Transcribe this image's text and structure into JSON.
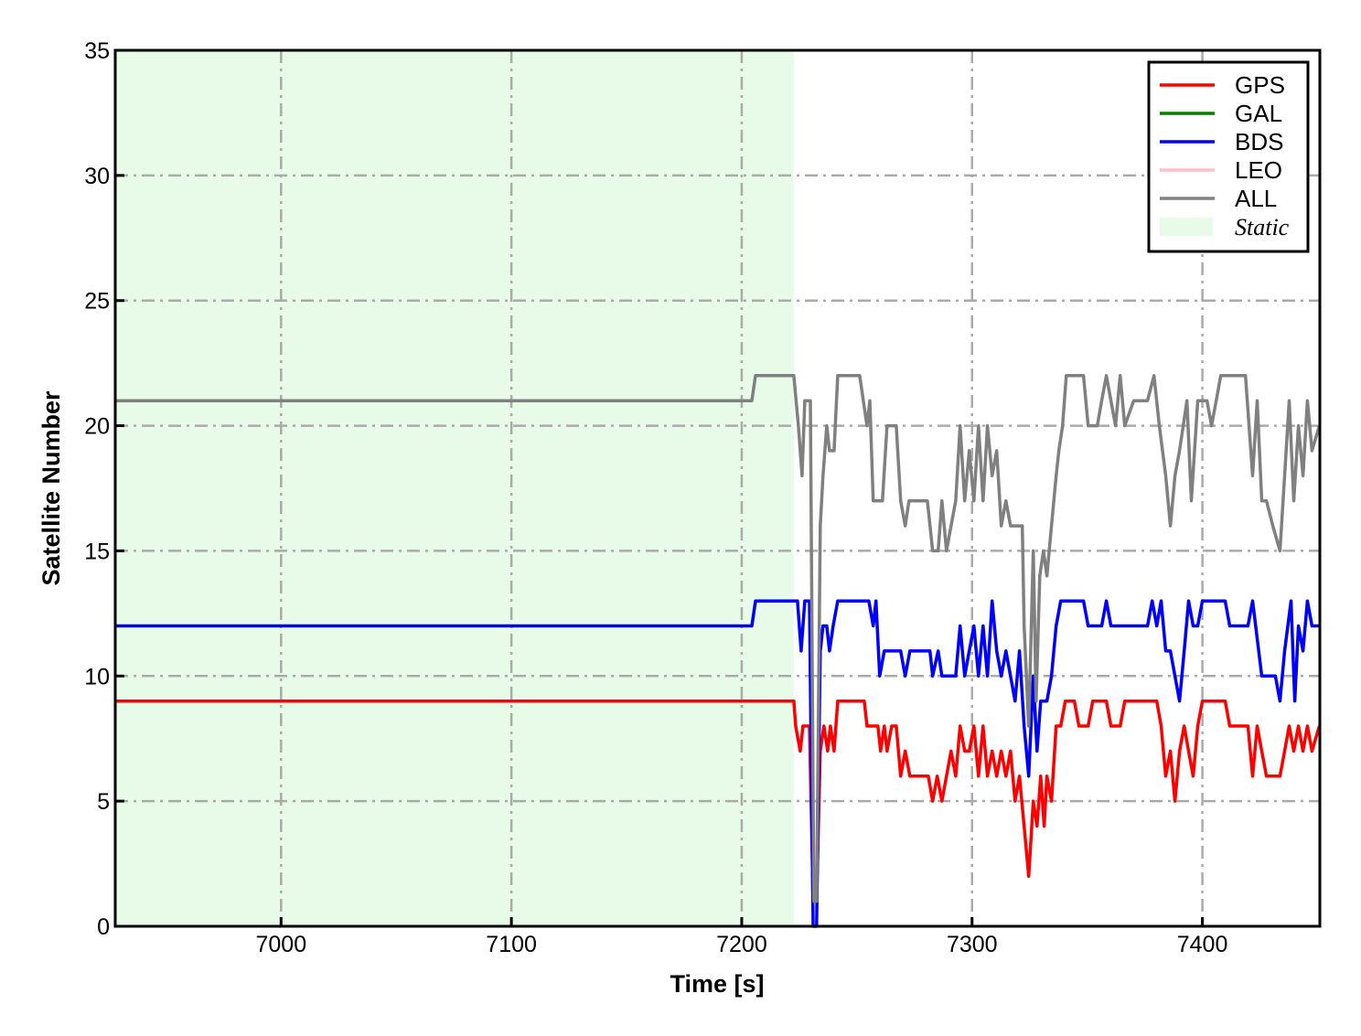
{
  "chart_data": {
    "type": "line",
    "title": "",
    "xlabel": "Time [s]",
    "ylabel": "Satellite Number",
    "xlim": [
      6928,
      7451
    ],
    "ylim": [
      0,
      35
    ],
    "xticks": [
      7000,
      7100,
      7200,
      7300,
      7400
    ],
    "yticks": [
      0,
      5,
      10,
      15,
      20,
      25,
      30,
      35
    ],
    "grid": true,
    "grid_style": "dash-dot",
    "legend_position": "top-right",
    "shaded_regions": [
      {
        "name": "Static",
        "x_start": 6928,
        "x_end": 7222.6,
        "color": "#e8fbe8"
      }
    ],
    "series": [
      {
        "name": "GPS",
        "color": "#ff0000",
        "points": [
          [
            6928,
            9
          ],
          [
            7222.6,
            9
          ],
          [
            7223.4,
            8
          ],
          [
            7225.4,
            7
          ],
          [
            7226.6,
            8
          ],
          [
            7229.4,
            8
          ],
          [
            7231,
            1
          ],
          [
            7232.5,
            1
          ],
          [
            7234.1,
            7
          ],
          [
            7235.7,
            8
          ],
          [
            7237.3,
            7
          ],
          [
            7238.5,
            8
          ],
          [
            7240.1,
            7
          ],
          [
            7241.7,
            9
          ],
          [
            7253.2,
            9
          ],
          [
            7254.4,
            8
          ],
          [
            7259.1,
            8
          ],
          [
            7260.3,
            7
          ],
          [
            7261.9,
            8
          ],
          [
            7263.1,
            7
          ],
          [
            7265.1,
            8
          ],
          [
            7267.1,
            8
          ],
          [
            7269,
            6
          ],
          [
            7271,
            7
          ],
          [
            7273,
            6
          ],
          [
            7281,
            6
          ],
          [
            7282.9,
            5
          ],
          [
            7284.9,
            6
          ],
          [
            7286.9,
            5
          ],
          [
            7288.9,
            6
          ],
          [
            7290.9,
            7
          ],
          [
            7292.9,
            6
          ],
          [
            7294.8,
            8
          ],
          [
            7296.8,
            7
          ],
          [
            7298.8,
            7
          ],
          [
            7300.8,
            8
          ],
          [
            7302.8,
            6
          ],
          [
            7304.8,
            8
          ],
          [
            7306.7,
            6
          ],
          [
            7308.7,
            7
          ],
          [
            7310.7,
            6
          ],
          [
            7312.7,
            7
          ],
          [
            7314.7,
            6
          ],
          [
            7316.7,
            7
          ],
          [
            7318.7,
            5
          ],
          [
            7320.6,
            6
          ],
          [
            7322.6,
            4
          ],
          [
            7324.6,
            2
          ],
          [
            7326.6,
            5
          ],
          [
            7328.2,
            4
          ],
          [
            7329.8,
            6
          ],
          [
            7331.3,
            4
          ],
          [
            7332.5,
            6
          ],
          [
            7334.5,
            5
          ],
          [
            7336.5,
            8
          ],
          [
            7338.5,
            8
          ],
          [
            7340.5,
            9
          ],
          [
            7344.4,
            9
          ],
          [
            7346.4,
            8
          ],
          [
            7350.4,
            8
          ],
          [
            7352.4,
            9
          ],
          [
            7358.3,
            9
          ],
          [
            7360.3,
            8
          ],
          [
            7364.3,
            8
          ],
          [
            7366.3,
            9
          ],
          [
            7380.2,
            9
          ],
          [
            7382.1,
            8
          ],
          [
            7384.1,
            6
          ],
          [
            7386.1,
            7
          ],
          [
            7388.1,
            5
          ],
          [
            7390.1,
            7
          ],
          [
            7392.1,
            8
          ],
          [
            7394,
            7
          ],
          [
            7396,
            6
          ],
          [
            7398,
            8
          ],
          [
            7400,
            9
          ],
          [
            7409.9,
            9
          ],
          [
            7411.9,
            8
          ],
          [
            7419.8,
            8
          ],
          [
            7421.8,
            6
          ],
          [
            7423.8,
            8
          ],
          [
            7425.8,
            7
          ],
          [
            7427.8,
            6
          ],
          [
            7433.7,
            6
          ],
          [
            7435.7,
            7
          ],
          [
            7437.7,
            8
          ],
          [
            7439.7,
            7
          ],
          [
            7441.7,
            8
          ],
          [
            7443.7,
            7
          ],
          [
            7445.6,
            8
          ],
          [
            7447.6,
            7
          ],
          [
            7450.8,
            8
          ]
        ]
      },
      {
        "name": "GAL",
        "color": "#008000",
        "points": []
      },
      {
        "name": "BDS",
        "color": "#0000ff",
        "points": [
          [
            6928,
            12
          ],
          [
            7204.4,
            12
          ],
          [
            7206,
            13
          ],
          [
            7224.2,
            13
          ],
          [
            7225.8,
            11
          ],
          [
            7227.4,
            13
          ],
          [
            7229.4,
            13
          ],
          [
            7231,
            0
          ],
          [
            7232.5,
            0
          ],
          [
            7234.1,
            11
          ],
          [
            7235.3,
            12
          ],
          [
            7236.9,
            12
          ],
          [
            7238.1,
            11
          ],
          [
            7239.7,
            12
          ],
          [
            7241.7,
            13
          ],
          [
            7255.2,
            13
          ],
          [
            7257.1,
            12
          ],
          [
            7258.3,
            13
          ],
          [
            7259.9,
            10
          ],
          [
            7261.9,
            11
          ],
          [
            7269,
            11
          ],
          [
            7271,
            10
          ],
          [
            7273,
            11
          ],
          [
            7281.7,
            11
          ],
          [
            7282.9,
            10
          ],
          [
            7285.3,
            11
          ],
          [
            7286.9,
            10
          ],
          [
            7292.9,
            10
          ],
          [
            7294.8,
            12
          ],
          [
            7296.8,
            10
          ],
          [
            7298.8,
            11
          ],
          [
            7300.8,
            12
          ],
          [
            7302.8,
            10
          ],
          [
            7304.8,
            12
          ],
          [
            7306.7,
            10
          ],
          [
            7308.7,
            13
          ],
          [
            7310.7,
            11
          ],
          [
            7312.7,
            10
          ],
          [
            7314.7,
            11
          ],
          [
            7316.7,
            10
          ],
          [
            7318.7,
            9
          ],
          [
            7320.6,
            11
          ],
          [
            7322.6,
            8
          ],
          [
            7324.6,
            6
          ],
          [
            7326.6,
            10
          ],
          [
            7328.2,
            7
          ],
          [
            7329.8,
            9
          ],
          [
            7332.5,
            9
          ],
          [
            7334.5,
            10
          ],
          [
            7336.5,
            12
          ],
          [
            7338.5,
            13
          ],
          [
            7348.4,
            13
          ],
          [
            7350.4,
            12
          ],
          [
            7356.3,
            12
          ],
          [
            7358.3,
            13
          ],
          [
            7360.3,
            12
          ],
          [
            7376.2,
            12
          ],
          [
            7378.2,
            13
          ],
          [
            7380.2,
            12
          ],
          [
            7382.1,
            13
          ],
          [
            7384.1,
            11
          ],
          [
            7386.1,
            11
          ],
          [
            7390.1,
            9
          ],
          [
            7392.1,
            11
          ],
          [
            7394,
            13
          ],
          [
            7396,
            12
          ],
          [
            7398,
            12
          ],
          [
            7400,
            13
          ],
          [
            7409.9,
            13
          ],
          [
            7411.9,
            12
          ],
          [
            7419.8,
            12
          ],
          [
            7421.8,
            13
          ],
          [
            7425.8,
            10
          ],
          [
            7431.7,
            10
          ],
          [
            7433.7,
            9
          ],
          [
            7435.7,
            11
          ],
          [
            7438.5,
            13
          ],
          [
            7440.1,
            9
          ],
          [
            7441.7,
            12
          ],
          [
            7443.7,
            11
          ],
          [
            7445.6,
            13
          ],
          [
            7447.6,
            12
          ],
          [
            7450.8,
            12
          ]
        ]
      },
      {
        "name": "LEO",
        "color": "#ffc0cb",
        "points": []
      },
      {
        "name": "ALL",
        "color": "#808080",
        "points": [
          [
            6928,
            21
          ],
          [
            7204.4,
            21
          ],
          [
            7206,
            22
          ],
          [
            7222.6,
            22
          ],
          [
            7224.6,
            20
          ],
          [
            7226.2,
            18
          ],
          [
            7227.4,
            21
          ],
          [
            7229.8,
            21
          ],
          [
            7231.3,
            1
          ],
          [
            7232.5,
            1
          ],
          [
            7234.1,
            16
          ],
          [
            7235.3,
            18
          ],
          [
            7236.9,
            20
          ],
          [
            7238.1,
            19
          ],
          [
            7240.1,
            19
          ],
          [
            7241.7,
            22
          ],
          [
            7251.2,
            22
          ],
          [
            7252.8,
            21
          ],
          [
            7254.4,
            20
          ],
          [
            7255.6,
            21
          ],
          [
            7257.1,
            17
          ],
          [
            7261.1,
            17
          ],
          [
            7263.1,
            20
          ],
          [
            7267.1,
            20
          ],
          [
            7269,
            17
          ],
          [
            7271,
            16
          ],
          [
            7272.6,
            17
          ],
          [
            7280.6,
            17
          ],
          [
            7282.9,
            15
          ],
          [
            7285.3,
            15
          ],
          [
            7286.9,
            17
          ],
          [
            7288.9,
            15
          ],
          [
            7290.9,
            16
          ],
          [
            7292.9,
            17
          ],
          [
            7294.8,
            20
          ],
          [
            7296.8,
            17
          ],
          [
            7298.8,
            19
          ],
          [
            7300.8,
            17
          ],
          [
            7302.8,
            20
          ],
          [
            7304.8,
            17
          ],
          [
            7306.7,
            20
          ],
          [
            7308.7,
            18
          ],
          [
            7310.7,
            19
          ],
          [
            7312.7,
            16
          ],
          [
            7314.7,
            17
          ],
          [
            7316.7,
            16
          ],
          [
            7318.7,
            16
          ],
          [
            7321.8,
            16
          ],
          [
            7322.6,
            12
          ],
          [
            7324.6,
            8
          ],
          [
            7326.6,
            15
          ],
          [
            7327.8,
            9
          ],
          [
            7329.4,
            14
          ],
          [
            7331,
            15
          ],
          [
            7332.5,
            14
          ],
          [
            7334.5,
            16
          ],
          [
            7336.5,
            18
          ],
          [
            7337.7,
            19
          ],
          [
            7339.3,
            20
          ],
          [
            7340.9,
            22
          ],
          [
            7348.4,
            22
          ],
          [
            7350.4,
            20
          ],
          [
            7354.4,
            20
          ],
          [
            7356.3,
            21
          ],
          [
            7358.3,
            22
          ],
          [
            7362.3,
            20
          ],
          [
            7364.3,
            22
          ],
          [
            7366.3,
            20
          ],
          [
            7370.2,
            21
          ],
          [
            7376.2,
            21
          ],
          [
            7379,
            22
          ],
          [
            7381.3,
            20
          ],
          [
            7384.1,
            18
          ],
          [
            7386.1,
            16
          ],
          [
            7388.1,
            18
          ],
          [
            7390.1,
            19
          ],
          [
            7393.3,
            21
          ],
          [
            7395.2,
            17
          ],
          [
            7398,
            21
          ],
          [
            7402,
            21
          ],
          [
            7404,
            20
          ],
          [
            7406,
            21
          ],
          [
            7408,
            22
          ],
          [
            7418.7,
            22
          ],
          [
            7421.8,
            18
          ],
          [
            7423.8,
            21
          ],
          [
            7425.8,
            17
          ],
          [
            7427.8,
            17
          ],
          [
            7430.6,
            16
          ],
          [
            7433.7,
            15
          ],
          [
            7435.7,
            18
          ],
          [
            7437.7,
            21
          ],
          [
            7439.7,
            17
          ],
          [
            7441.7,
            20
          ],
          [
            7443.7,
            18
          ],
          [
            7445.6,
            21
          ],
          [
            7447.6,
            19
          ],
          [
            7450.8,
            20
          ]
        ]
      }
    ],
    "legend": [
      {
        "label": "GPS",
        "color": "#ff0000",
        "kind": "line"
      },
      {
        "label": "GAL",
        "color": "#008000",
        "kind": "line"
      },
      {
        "label": "BDS",
        "color": "#0000ff",
        "kind": "line"
      },
      {
        "label": "LEO",
        "color": "#ffc0cb",
        "kind": "line"
      },
      {
        "label": "ALL",
        "color": "#808080",
        "kind": "line"
      },
      {
        "label": "Static",
        "color": "#e8fbe8",
        "kind": "patch"
      }
    ]
  }
}
